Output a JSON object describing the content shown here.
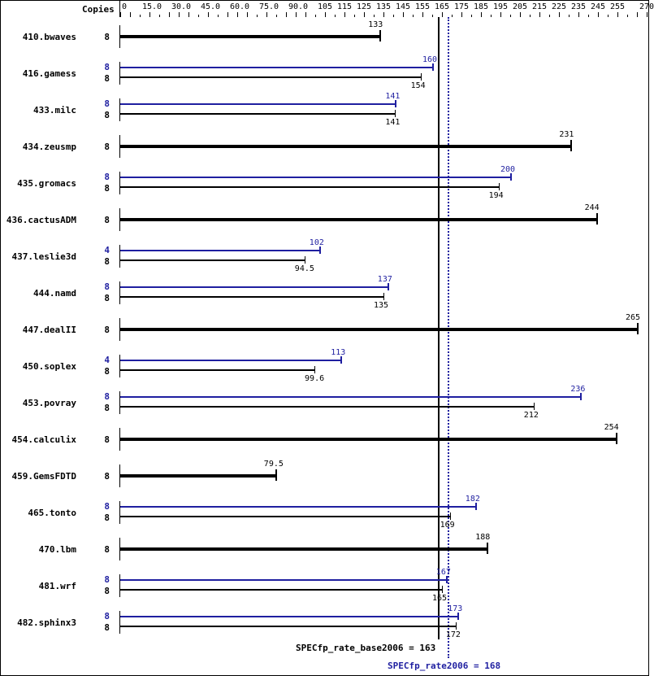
{
  "chart_data": {
    "type": "bar",
    "orientation": "horizontal",
    "title": "",
    "xlabel": "",
    "ylabel": "",
    "xlim": [
      0,
      270
    ],
    "column_header": "Copies",
    "tick_labels": [
      "0",
      "15.0",
      "30.0",
      "45.0",
      "60.0",
      "75.0",
      "90.0",
      "105",
      "115",
      "125",
      "135",
      "145",
      "155",
      "165",
      "175",
      "185",
      "195",
      "205",
      "215",
      "225",
      "235",
      "245",
      "255",
      "270"
    ],
    "categories": [
      "410.bwaves",
      "416.gamess",
      "433.milc",
      "434.zeusmp",
      "435.gromacs",
      "436.cactusADM",
      "437.leslie3d",
      "444.namd",
      "447.dealII",
      "450.soplex",
      "453.povray",
      "454.calculix",
      "459.GemsFDTD",
      "465.tonto",
      "470.lbm",
      "481.wrf",
      "482.sphinx3"
    ],
    "series": [
      {
        "name": "SPECfp_rate2006 (peak)",
        "color": "#1f1fa0",
        "copies": [
          null,
          8,
          8,
          null,
          8,
          null,
          4,
          8,
          null,
          4,
          8,
          null,
          null,
          8,
          null,
          8,
          8
        ],
        "values": [
          null,
          160,
          141,
          null,
          200,
          null,
          102,
          137,
          null,
          113,
          236,
          null,
          null,
          182,
          null,
          167,
          173
        ]
      },
      {
        "name": "SPECfp_rate_base2006 (base)",
        "color": "#000000",
        "copies": [
          8,
          8,
          8,
          8,
          8,
          8,
          8,
          8,
          8,
          8,
          8,
          8,
          8,
          8,
          8,
          8,
          8
        ],
        "values": [
          133,
          154,
          141,
          231,
          194,
          244,
          94.5,
          135,
          265,
          99.6,
          212,
          254,
          79.5,
          169,
          188,
          165,
          172
        ]
      }
    ],
    "reference_lines": [
      {
        "label": "SPECfp_rate_base2006 = 163",
        "value": 163,
        "style": "solid",
        "color": "#000000"
      },
      {
        "label": "SPECfp_rate2006 = 168",
        "value": 168,
        "style": "dotted",
        "color": "#1f1fa0"
      }
    ]
  },
  "labels": {
    "copies": "Copies",
    "base_summary": "SPECfp_rate_base2006 = 163",
    "peak_summary": "SPECfp_rate2006 = 168"
  }
}
